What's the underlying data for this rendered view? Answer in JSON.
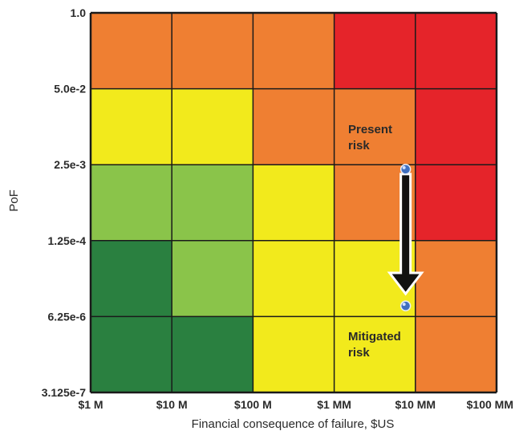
{
  "colors": {
    "dark-green": "#2a8040",
    "light-green": "#8ac44a",
    "yellow": "#f2ea1c",
    "orange": "#ef7f32",
    "red": "#e5242a",
    "grid": "#1a1a1a",
    "marker": "#3f6fbf",
    "arrow": "#111111"
  },
  "chart_data": {
    "type": "heatmap",
    "xlabel": "Financial consequence of failure, $US",
    "ylabel": "PoF",
    "x_ticks": [
      "$1 M",
      "$10 M",
      "$100 M",
      "$1 MM",
      "$10 MM",
      "$100 MM"
    ],
    "y_ticks": [
      "1.0",
      "5.0e-2",
      "2.5e-3",
      "1.25e-4",
      "6.25e-6",
      "3.125e-7"
    ],
    "grid": true,
    "cells": [
      [
        "orange",
        "orange",
        "orange",
        "red",
        "red"
      ],
      [
        "yellow",
        "yellow",
        "orange",
        "orange",
        "red"
      ],
      [
        "light-green",
        "light-green",
        "yellow",
        "orange",
        "red"
      ],
      [
        "dark-green",
        "light-green",
        "yellow",
        "yellow",
        "orange"
      ],
      [
        "dark-green",
        "dark-green",
        "yellow",
        "yellow",
        "orange"
      ]
    ],
    "points": [
      {
        "label_lines": [
          "Present",
          "risk"
        ],
        "x_index": 3.88,
        "y_index": 2.06
      },
      {
        "label_lines": [
          "Mitigated",
          "risk"
        ],
        "x_index": 3.88,
        "y_index": 3.86
      }
    ]
  }
}
